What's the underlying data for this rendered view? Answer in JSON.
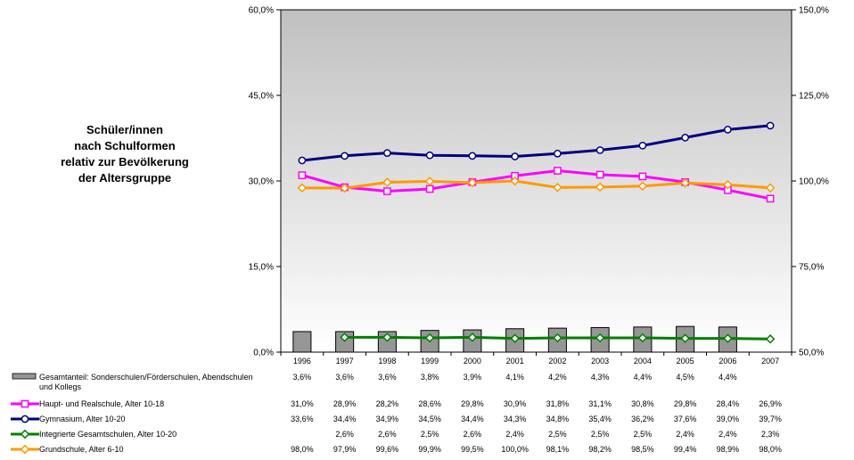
{
  "title_lines": [
    "Schüler/innen",
    "nach Schulformen",
    "relativ zur Bevölkerung",
    "der Altersgruppe"
  ],
  "colors": {
    "plot_top": "#c0c0c0",
    "plot_bottom": "#ffffff",
    "bar_fill": "#969696",
    "haupt": "#ff00ff",
    "gymnasium": "#000080",
    "gesamt": "#008000",
    "grundschule": "#ff9900"
  },
  "chart_data": {
    "type": "line",
    "x": [
      "1996",
      "1997",
      "1998",
      "1999",
      "2000",
      "2001",
      "2002",
      "2003",
      "2004",
      "2005",
      "2006",
      "2007"
    ],
    "y_left": {
      "ylim": [
        0,
        60
      ],
      "ticks": [
        "0,0%",
        "15,0%",
        "30,0%",
        "45,0%",
        "60,0%"
      ]
    },
    "y_right": {
      "ylim": [
        50,
        150
      ],
      "ticks": [
        "50,0%",
        "75,0%",
        "100,0%",
        "125,0%",
        "150,0%"
      ]
    },
    "grid": false,
    "legend_position": "bottom-left (data table)",
    "series": [
      {
        "key": "sonder",
        "name": "Gesamtanteil: Sonderschulen/Förderschulen, Abendschulen und Kollegs",
        "name_lines": [
          "Gesamtanteil: Sonderschulen/Förderschulen, Abendschulen",
          "und Kollegs"
        ],
        "kind": "bar",
        "axis": "left",
        "values": [
          3.6,
          3.6,
          3.6,
          3.8,
          3.9,
          4.1,
          4.2,
          4.3,
          4.4,
          4.5,
          4.4,
          null
        ],
        "labels": [
          "3,6%",
          "3,6%",
          "3,6%",
          "3,8%",
          "3,9%",
          "4,1%",
          "4,2%",
          "4,3%",
          "4,4%",
          "4,5%",
          "4,4%",
          ""
        ]
      },
      {
        "key": "haupt",
        "name": "Haupt- und Realschule, Alter 10-18",
        "kind": "line",
        "marker": "square",
        "axis": "left",
        "values": [
          31.0,
          28.9,
          28.2,
          28.6,
          29.8,
          30.9,
          31.8,
          31.1,
          30.8,
          29.8,
          28.4,
          26.9
        ],
        "labels": [
          "31,0%",
          "28,9%",
          "28,2%",
          "28,6%",
          "29,8%",
          "30,9%",
          "31,8%",
          "31,1%",
          "30,8%",
          "29,8%",
          "28,4%",
          "26,9%"
        ]
      },
      {
        "key": "gymnasium",
        "name": "Gymnasium, Alter 10-20",
        "kind": "line",
        "marker": "circle",
        "axis": "left",
        "values": [
          33.6,
          34.4,
          34.9,
          34.5,
          34.4,
          34.3,
          34.8,
          35.4,
          36.2,
          37.6,
          39.0,
          39.7
        ],
        "labels": [
          "33,6%",
          "34,4%",
          "34,9%",
          "34,5%",
          "34,4%",
          "34,3%",
          "34,8%",
          "35,4%",
          "36,2%",
          "37,6%",
          "39,0%",
          "39,7%"
        ]
      },
      {
        "key": "gesamt",
        "name": "Integrierte Gesamtschulen, Alter 10-20",
        "kind": "line",
        "marker": "diamond",
        "axis": "left",
        "values": [
          null,
          2.6,
          2.6,
          2.5,
          2.6,
          2.4,
          2.5,
          2.5,
          2.5,
          2.4,
          2.4,
          2.3
        ],
        "labels": [
          "",
          "2,6%",
          "2,6%",
          "2,5%",
          "2,6%",
          "2,4%",
          "2,5%",
          "2,5%",
          "2,5%",
          "2,4%",
          "2,4%",
          "2,3%"
        ]
      },
      {
        "key": "grundschule",
        "name": "Grundschule, Alter 6-10",
        "kind": "line",
        "marker": "diamond",
        "axis": "right",
        "values": [
          98.0,
          97.9,
          99.6,
          99.9,
          99.5,
          100.0,
          98.1,
          98.2,
          98.5,
          99.4,
          98.9,
          98.0
        ],
        "labels": [
          "98,0%",
          "97,9%",
          "99,6%",
          "99,9%",
          "99,5%",
          "100,0%",
          "98,1%",
          "98,2%",
          "98,5%",
          "99,4%",
          "98,9%",
          "98,0%"
        ]
      }
    ]
  }
}
